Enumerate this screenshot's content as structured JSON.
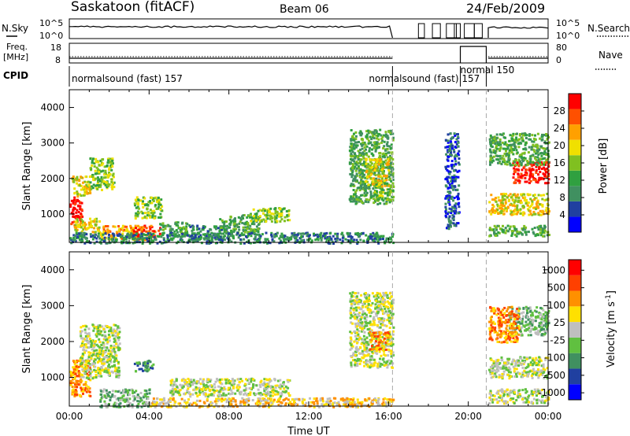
{
  "header": {
    "station": "Saskatoon (fitACF)",
    "beam": "Beam 06",
    "date": "24/Feb/2009"
  },
  "strip_labels": {
    "nsky": "N.Sky",
    "nsky_top": "10^5",
    "nsky_bottom": "10^0",
    "freq_line1": "Freq.",
    "freq_line2": "[MHz]",
    "freq_top": "18",
    "freq_bottom": "8",
    "nsearch": "N.Search",
    "nsearch_top": "10^5",
    "nsearch_bottom": "10^0",
    "nave": "Nave",
    "nave_top": "80",
    "nave_bottom": "0",
    "cpid": "CPID"
  },
  "cpid_segments": [
    {
      "label": "normalsound (fast) 157",
      "start_hour": 0.0,
      "end_hour": 16.2
    },
    {
      "label": "normalsound (fast) 157",
      "start_hour": 16.2,
      "end_hour": 20.9
    },
    {
      "label": "normal 150",
      "start_hour": 19.6,
      "end_hour": 20.9
    }
  ],
  "colors": {
    "power_scale": [
      "#0000ff",
      "#2040a0",
      "#409060",
      "#30a040",
      "#80c020",
      "#f0e000",
      "#ffa000",
      "#ff5000",
      "#ff0000"
    ],
    "velocity_scale": [
      "#0000ff",
      "#2040a0",
      "#409060",
      "#60c040",
      "#bfbfbf",
      "#ffe000",
      "#ff9000",
      "#ff4000",
      "#ff0000"
    ],
    "grid_dash": "#aaaaaa"
  },
  "chart_data": [
    {
      "type": "heatmap",
      "name": "power",
      "xlabel": "",
      "ylabel": "Slant Range [km]",
      "xlim_hours": [
        0,
        24
      ],
      "ylim": [
        200,
        4500
      ],
      "yticks": [
        "1000",
        "2000",
        "3000",
        "4000"
      ],
      "colorbar_label": "Power [dB]",
      "colorbar_ticks": [
        "4",
        "8",
        "12",
        "16",
        "20",
        "24",
        "28"
      ],
      "blobs": [
        {
          "t0": 0.0,
          "t1": 0.6,
          "r0": 700,
          "r1": 1500,
          "level": 8
        },
        {
          "t0": 0.1,
          "t1": 1.0,
          "r0": 1500,
          "r1": 2100,
          "level": 5
        },
        {
          "t0": 1.0,
          "t1": 2.2,
          "r0": 1700,
          "r1": 2600,
          "level": 4
        },
        {
          "t0": 0.2,
          "t1": 1.5,
          "r0": 500,
          "r1": 900,
          "level": 5
        },
        {
          "t0": 1.5,
          "t1": 3.5,
          "r0": 300,
          "r1": 700,
          "level": 6
        },
        {
          "t0": 3.0,
          "t1": 4.5,
          "r0": 300,
          "r1": 700,
          "level": 7
        },
        {
          "t0": 3.2,
          "t1": 4.6,
          "r0": 900,
          "r1": 1500,
          "level": 4
        },
        {
          "t0": 4.5,
          "t1": 6.0,
          "r0": 400,
          "r1": 800,
          "level": 3
        },
        {
          "t0": 6.0,
          "t1": 8.0,
          "r0": 300,
          "r1": 700,
          "level": 2
        },
        {
          "t0": 7.5,
          "t1": 9.5,
          "r0": 500,
          "r1": 1000,
          "level": 3
        },
        {
          "t0": 9.0,
          "t1": 11.0,
          "r0": 800,
          "r1": 1200,
          "level": 4
        },
        {
          "t0": 0.0,
          "t1": 16.2,
          "r0": 200,
          "r1": 500,
          "level": 2
        },
        {
          "t0": 14.0,
          "t1": 16.2,
          "r0": 1300,
          "r1": 3400,
          "level": 3
        },
        {
          "t0": 14.8,
          "t1": 16.0,
          "r0": 1800,
          "r1": 2600,
          "level": 5
        },
        {
          "t0": 15.2,
          "t1": 16.2,
          "r0": 1400,
          "r1": 1900,
          "level": 4
        },
        {
          "t0": 21.0,
          "t1": 24.0,
          "r0": 1000,
          "r1": 1600,
          "level": 5
        },
        {
          "t0": 22.2,
          "t1": 24.0,
          "r0": 1900,
          "r1": 2500,
          "level": 8
        },
        {
          "t0": 21.0,
          "t1": 24.0,
          "r0": 2400,
          "r1": 3300,
          "level": 3
        },
        {
          "t0": 21.0,
          "t1": 24.0,
          "r0": 400,
          "r1": 700,
          "level": 3
        },
        {
          "t0": 18.8,
          "t1": 19.5,
          "r0": 600,
          "r1": 3300,
          "level": 1
        }
      ]
    },
    {
      "type": "heatmap",
      "name": "velocity",
      "xlabel": "Time UT",
      "ylabel": "Slant Range [km]",
      "xlim_hours": [
        0,
        24
      ],
      "xticks": [
        "00:00",
        "04:00",
        "08:00",
        "12:00",
        "16:00",
        "20:00",
        "00:00"
      ],
      "ylim": [
        200,
        4500
      ],
      "yticks": [
        "1000",
        "2000",
        "3000",
        "4000"
      ],
      "colorbar_label": "Velocity [m s^-1]",
      "colorbar_ticks": [
        "1000",
        "500",
        "100",
        "25",
        "-25",
        "-100",
        "-500",
        "-1000"
      ],
      "blobs": [
        {
          "t0": 0.0,
          "t1": 1.0,
          "r0": 500,
          "r1": 1500,
          "level": 6
        },
        {
          "t0": 0.5,
          "t1": 2.5,
          "r0": 1000,
          "r1": 2500,
          "level": 4
        },
        {
          "t0": 1.5,
          "t1": 4.0,
          "r0": 200,
          "r1": 700,
          "level": 3
        },
        {
          "t0": 3.2,
          "t1": 4.2,
          "r0": 1200,
          "r1": 1500,
          "level": 2
        },
        {
          "t0": 4.0,
          "t1": 16.2,
          "r0": 200,
          "r1": 450,
          "level": 5
        },
        {
          "t0": 5.0,
          "t1": 11.0,
          "r0": 500,
          "r1": 1000,
          "level": 4
        },
        {
          "t0": 14.0,
          "t1": 16.2,
          "r0": 1300,
          "r1": 3400,
          "level": 4
        },
        {
          "t0": 15.0,
          "t1": 16.0,
          "r0": 1800,
          "r1": 2300,
          "level": 6
        },
        {
          "t0": 21.0,
          "t1": 24.0,
          "r0": 1000,
          "r1": 1600,
          "level": 4
        },
        {
          "t0": 22.0,
          "t1": 24.0,
          "r0": 2200,
          "r1": 3000,
          "level": 3
        },
        {
          "t0": 21.0,
          "t1": 22.5,
          "r0": 2000,
          "r1": 3000,
          "level": 6
        },
        {
          "t0": 21.0,
          "t1": 24.0,
          "r0": 300,
          "r1": 700,
          "level": 4
        }
      ]
    }
  ]
}
